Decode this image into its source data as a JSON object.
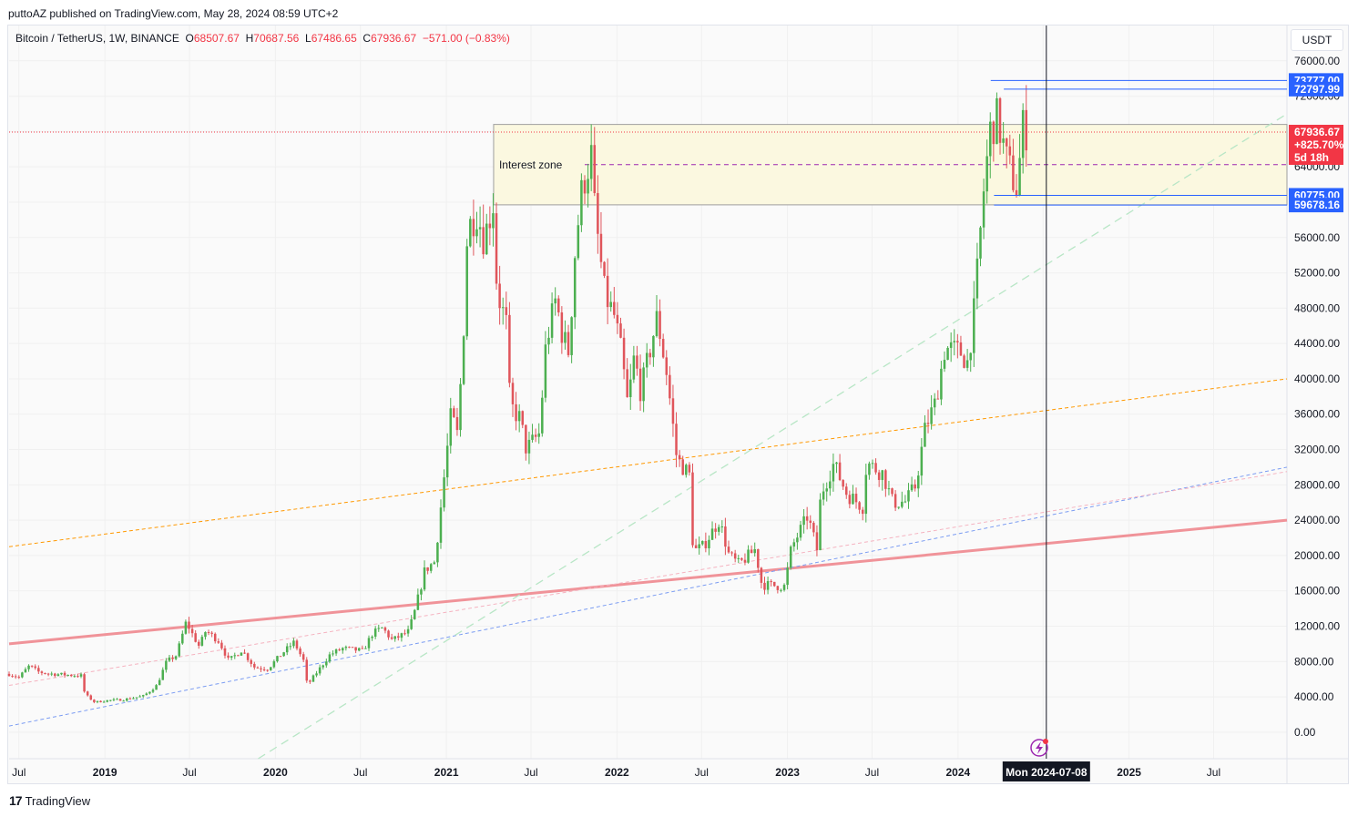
{
  "publisher_line": "puttoAZ published on TradingView.com, May 28, 2024 08:59 UTC+2",
  "symbol": {
    "name": "Bitcoin / TetherUS, 1W, BINANCE",
    "o_label": "O",
    "o_value": "68507.67",
    "h_label": "H",
    "h_value": "70687.56",
    "l_label": "L",
    "l_value": "67486.65",
    "c_label": "C",
    "c_value": "67936.67",
    "change": "−571.00 (−0.83%)"
  },
  "currency_button": "USDT",
  "footer_brand": "TradingView",
  "colors": {
    "up": "#4caf50",
    "down": "#e0555b",
    "trend_main": "#f09399",
    "trend_orange": "#ff9800",
    "trend_blue": "#7b9cf2",
    "trend_pink": "#f5b3c0",
    "trend_green": "#b8e6c6",
    "zone_fill": "#fbf8e0",
    "zone_border": "#9e9e9e",
    "mid_line": "#9c27b0",
    "level_line": "#2962ff",
    "price_red": "#f23645",
    "badge_blue": "#2962ff"
  },
  "chart_data": {
    "type": "candlestick",
    "timeframe": "1W",
    "y_axis": {
      "ticks": [
        "0.00",
        "4000.00",
        "8000.00",
        "12000.00",
        "16000.00",
        "20000.00",
        "24000.00",
        "28000.00",
        "32000.00",
        "36000.00",
        "40000.00",
        "44000.00",
        "48000.00",
        "52000.00",
        "56000.00",
        "60000.00",
        "64000.00",
        "68000.00",
        "72000.00",
        "76000.00"
      ],
      "range": [
        -3000,
        80000
      ]
    },
    "x_axis": {
      "ticks": [
        "Jul",
        "2019",
        "Jul",
        "2020",
        "Jul",
        "2021",
        "Jul",
        "2022",
        "Jul",
        "2023",
        "Jul",
        "2024",
        "Jul",
        "2025",
        "Jul"
      ],
      "tick_dates": [
        "2018-07-01",
        "2019-01-01",
        "2019-07-01",
        "2020-01-01",
        "2020-07-01",
        "2021-01-01",
        "2021-07-01",
        "2022-01-01",
        "2022-07-01",
        "2023-01-01",
        "2023-07-01",
        "2024-01-01",
        "2024-07-01",
        "2025-01-01",
        "2025-07-01"
      ],
      "bold": [
        false,
        true,
        false,
        true,
        false,
        true,
        false,
        true,
        false,
        true,
        false,
        true,
        false,
        true,
        false
      ],
      "range": [
        "2018-06-10",
        "2025-12-05"
      ]
    },
    "crosshair": {
      "date": "2024-07-08",
      "label": "Mon 2024-07-08"
    },
    "price_levels": [
      {
        "label": "73777.00",
        "value": 73777,
        "start": "2024-03-11"
      },
      {
        "label": "72797.99",
        "value": 72797.99,
        "start": "2024-04-08"
      },
      {
        "label": "60775.00",
        "value": 60775,
        "start": "2024-03-18"
      },
      {
        "label": "59678.16",
        "value": 59678.16,
        "start": "2024-03-18"
      }
    ],
    "current_price": {
      "label": "67936.67",
      "change_label": "+825.70%",
      "countdown": "5d 18h",
      "value": 67936.67
    },
    "interest_zone": {
      "label": "Interest zone",
      "top": 68800,
      "bottom": 59700,
      "mid": 64250,
      "start": "2021-04-12"
    },
    "trend_lines": [
      {
        "name": "main",
        "points": [
          [
            "2018-06-10",
            10000
          ],
          [
            "2025-12-05",
            24000
          ]
        ]
      },
      {
        "name": "orange",
        "points": [
          [
            "2018-06-10",
            21000
          ],
          [
            "2025-12-05",
            40000
          ]
        ]
      },
      {
        "name": "blue",
        "points": [
          [
            "2018-06-10",
            700
          ],
          [
            "2025-12-05",
            30000
          ]
        ]
      },
      {
        "name": "pink",
        "points": [
          [
            "2018-06-10",
            5300
          ],
          [
            "2025-12-05",
            29500
          ]
        ]
      },
      {
        "name": "green",
        "points": [
          [
            "2019-11-25",
            -3000
          ],
          [
            "2025-12-05",
            70000
          ]
        ]
      }
    ],
    "anchors": [
      [
        "2018-06-10",
        6600
      ],
      [
        "2018-07-01",
        6200
      ],
      [
        "2018-07-23",
        7500
      ],
      [
        "2018-08-13",
        6800
      ],
      [
        "2018-09-10",
        6600
      ],
      [
        "2018-10-08",
        6500
      ],
      [
        "2018-11-12",
        6400
      ],
      [
        "2018-11-19",
        4300
      ],
      [
        "2018-12-10",
        3400
      ],
      [
        "2019-01-07",
        3600
      ],
      [
        "2019-02-11",
        3700
      ],
      [
        "2019-03-25",
        4100
      ],
      [
        "2019-04-22",
        5300
      ],
      [
        "2019-05-13",
        8000
      ],
      [
        "2019-06-03",
        8700
      ],
      [
        "2019-06-24",
        12500
      ],
      [
        "2019-07-08",
        11000
      ],
      [
        "2019-07-22",
        9700
      ],
      [
        "2019-08-05",
        11500
      ],
      [
        "2019-09-02",
        10300
      ],
      [
        "2019-09-23",
        8100
      ],
      [
        "2019-10-21",
        9300
      ],
      [
        "2019-11-18",
        7300
      ],
      [
        "2019-12-16",
        7200
      ],
      [
        "2020-01-13",
        8800
      ],
      [
        "2020-02-10",
        10200
      ],
      [
        "2020-03-02",
        8000
      ],
      [
        "2020-03-09",
        5300
      ],
      [
        "2020-03-30",
        6800
      ],
      [
        "2020-04-27",
        8800
      ],
      [
        "2020-05-25",
        9500
      ],
      [
        "2020-07-06",
        9200
      ],
      [
        "2020-07-27",
        11200
      ],
      [
        "2020-08-17",
        11800
      ],
      [
        "2020-09-07",
        10400
      ],
      [
        "2020-10-12",
        11400
      ],
      [
        "2020-10-26",
        13800
      ],
      [
        "2020-11-16",
        18400
      ],
      [
        "2020-12-07",
        19300
      ],
      [
        "2020-12-28",
        29300
      ],
      [
        "2021-01-11",
        36000
      ],
      [
        "2021-01-25",
        33500
      ],
      [
        "2021-02-08",
        47000
      ],
      [
        "2021-02-15",
        57000
      ],
      [
        "2021-03-08",
        58900
      ],
      [
        "2021-03-22",
        55800
      ],
      [
        "2021-04-12",
        60000
      ],
      [
        "2021-04-19",
        50000
      ],
      [
        "2021-05-10",
        46000
      ],
      [
        "2021-05-17",
        37000
      ],
      [
        "2021-06-07",
        35500
      ],
      [
        "2021-06-21",
        32000
      ],
      [
        "2021-07-19",
        33800
      ],
      [
        "2021-08-02",
        44000
      ],
      [
        "2021-08-23",
        49000
      ],
      [
        "2021-09-06",
        45000
      ],
      [
        "2021-09-20",
        43000
      ],
      [
        "2021-10-04",
        55000
      ],
      [
        "2021-10-18",
        61500
      ],
      [
        "2021-11-08",
        65500
      ],
      [
        "2021-11-15",
        58500
      ],
      [
        "2021-12-06",
        49500
      ],
      [
        "2021-12-27",
        47000
      ],
      [
        "2022-01-10",
        43000
      ],
      [
        "2022-01-24",
        37000
      ],
      [
        "2022-02-07",
        42500
      ],
      [
        "2022-02-21",
        38500
      ],
      [
        "2022-03-28",
        47000
      ],
      [
        "2022-04-18",
        40500
      ],
      [
        "2022-05-09",
        31000
      ],
      [
        "2022-06-06",
        29000
      ],
      [
        "2022-06-13",
        20500
      ],
      [
        "2022-07-04",
        21000
      ],
      [
        "2022-08-08",
        24000
      ],
      [
        "2022-08-29",
        20000
      ],
      [
        "2022-09-19",
        19000
      ],
      [
        "2022-10-24",
        20700
      ],
      [
        "2022-11-07",
        16700
      ],
      [
        "2022-12-26",
        16500
      ],
      [
        "2023-01-09",
        20800
      ],
      [
        "2023-02-13",
        24500
      ],
      [
        "2023-03-06",
        20500
      ],
      [
        "2023-03-13",
        26900
      ],
      [
        "2023-04-10",
        30400
      ],
      [
        "2023-05-08",
        27000
      ],
      [
        "2023-06-12",
        25500
      ],
      [
        "2023-06-19",
        30500
      ],
      [
        "2023-07-24",
        29300
      ],
      [
        "2023-08-14",
        26000
      ],
      [
        "2023-09-11",
        26100
      ],
      [
        "2023-10-02",
        27900
      ],
      [
        "2023-10-23",
        34500
      ],
      [
        "2023-11-13",
        37200
      ],
      [
        "2023-12-04",
        43500
      ],
      [
        "2024-01-08",
        43000
      ],
      [
        "2024-01-22",
        41800
      ],
      [
        "2024-02-05",
        48000
      ],
      [
        "2024-02-26",
        62000
      ],
      [
        "2024-03-11",
        68500
      ],
      [
        "2024-03-25",
        69500
      ],
      [
        "2024-04-15",
        64500
      ],
      [
        "2024-05-06",
        61500
      ],
      [
        "2024-05-20",
        69000
      ],
      [
        "2024-05-27",
        67936.67
      ]
    ]
  }
}
